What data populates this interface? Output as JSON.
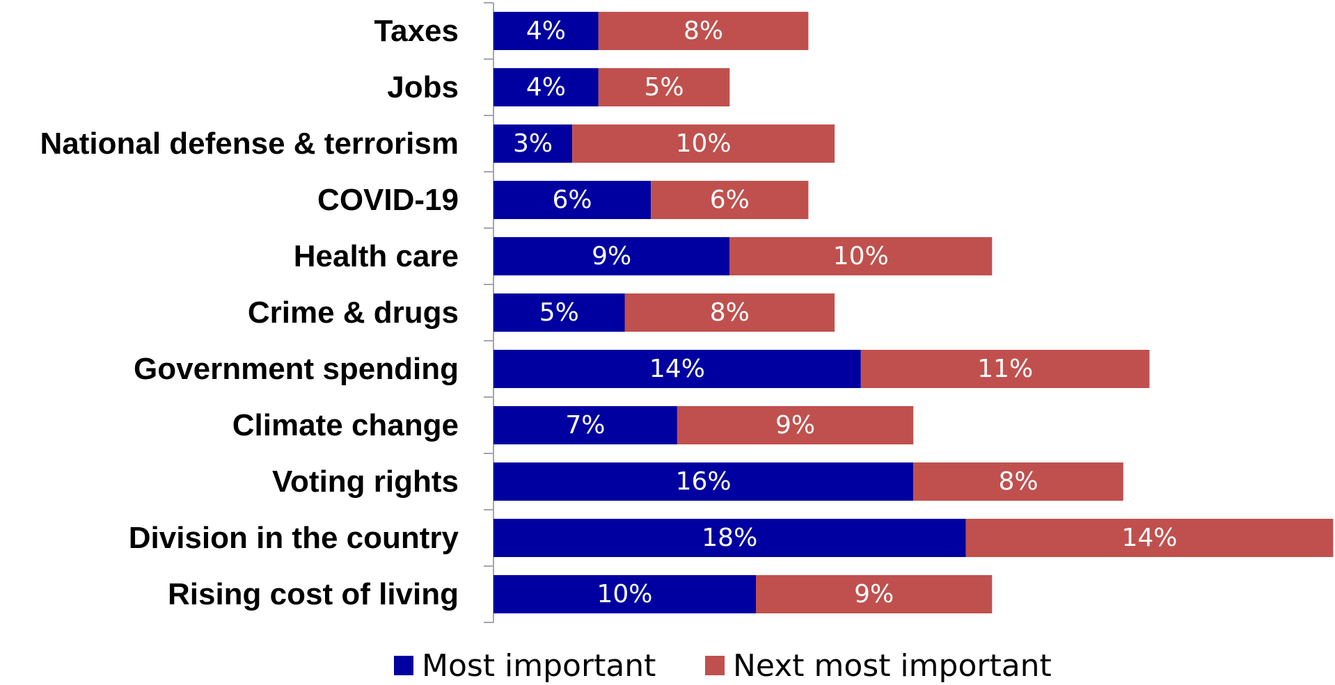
{
  "chart_data": {
    "type": "bar",
    "orientation": "horizontal",
    "stacked": true,
    "categories": [
      "Taxes",
      "Jobs",
      "National defense & terrorism",
      "COVID-19",
      "Health care",
      "Crime & drugs",
      "Government spending",
      "Climate change",
      "Voting rights",
      "Division in the country",
      "Rising cost of living"
    ],
    "series": [
      {
        "name": "Most important",
        "color": "#0000A0",
        "values": [
          4,
          4,
          3,
          6,
          9,
          5,
          14,
          7,
          16,
          18,
          10
        ]
      },
      {
        "name": "Next most important",
        "color": "#C0504D",
        "values": [
          8,
          5,
          10,
          6,
          10,
          8,
          11,
          9,
          8,
          14,
          9
        ]
      }
    ],
    "value_suffix": "%",
    "data_labels": true,
    "grid": false,
    "legend_position": "bottom",
    "title": "",
    "xlabel": "",
    "ylabel": ""
  }
}
